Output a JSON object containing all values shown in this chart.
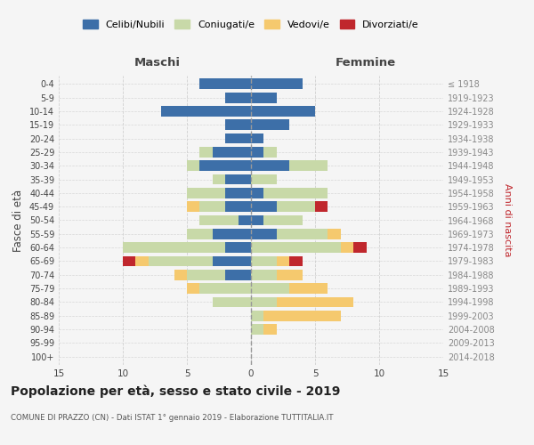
{
  "age_groups": [
    "0-4",
    "5-9",
    "10-14",
    "15-19",
    "20-24",
    "25-29",
    "30-34",
    "35-39",
    "40-44",
    "45-49",
    "50-54",
    "55-59",
    "60-64",
    "65-69",
    "70-74",
    "75-79",
    "80-84",
    "85-89",
    "90-94",
    "95-99",
    "100+"
  ],
  "birth_years": [
    "2014-2018",
    "2009-2013",
    "2004-2008",
    "1999-2003",
    "1994-1998",
    "1989-1993",
    "1984-1988",
    "1979-1983",
    "1974-1978",
    "1969-1973",
    "1964-1968",
    "1959-1963",
    "1954-1958",
    "1949-1953",
    "1944-1948",
    "1939-1943",
    "1934-1938",
    "1929-1933",
    "1924-1928",
    "1919-1923",
    "≤ 1918"
  ],
  "males": {
    "celibi": [
      4,
      2,
      7,
      2,
      2,
      3,
      4,
      2,
      2,
      2,
      1,
      3,
      2,
      3,
      2,
      0,
      0,
      0,
      0,
      0,
      0
    ],
    "coniugati": [
      0,
      0,
      0,
      0,
      0,
      1,
      1,
      1,
      3,
      2,
      3,
      2,
      8,
      5,
      3,
      4,
      3,
      0,
      0,
      0,
      0
    ],
    "vedovi": [
      0,
      0,
      0,
      0,
      0,
      0,
      0,
      0,
      0,
      1,
      0,
      0,
      0,
      1,
      1,
      1,
      0,
      0,
      0,
      0,
      0
    ],
    "divorziati": [
      0,
      0,
      0,
      0,
      0,
      0,
      0,
      0,
      0,
      0,
      0,
      0,
      0,
      1,
      0,
      0,
      0,
      0,
      0,
      0,
      0
    ]
  },
  "females": {
    "nubili": [
      4,
      2,
      5,
      3,
      1,
      1,
      3,
      0,
      1,
      2,
      1,
      2,
      0,
      0,
      0,
      0,
      0,
      0,
      0,
      0,
      0
    ],
    "coniugate": [
      0,
      0,
      0,
      0,
      0,
      1,
      3,
      2,
      5,
      3,
      3,
      4,
      7,
      2,
      2,
      3,
      2,
      1,
      1,
      0,
      0
    ],
    "vedove": [
      0,
      0,
      0,
      0,
      0,
      0,
      0,
      0,
      0,
      0,
      0,
      1,
      1,
      1,
      2,
      3,
      6,
      6,
      1,
      0,
      0
    ],
    "divorziate": [
      0,
      0,
      0,
      0,
      0,
      0,
      0,
      0,
      0,
      1,
      0,
      0,
      1,
      1,
      0,
      0,
      0,
      0,
      0,
      0,
      0
    ]
  },
  "colors": {
    "celibi": "#3d6fa8",
    "coniugati": "#c8d9a8",
    "vedovi": "#f5c96e",
    "divorziati": "#c0272d"
  },
  "title": "Popolazione per età, sesso e stato civile - 2019",
  "subtitle": "COMUNE DI PRAZZO (CN) - Dati ISTAT 1° gennaio 2019 - Elaborazione TUTTITALIA.IT",
  "xlabel_left": "Maschi",
  "xlabel_right": "Femmine",
  "ylabel_left": "Fasce di età",
  "ylabel_right": "Anni di nascita",
  "xlim": 15,
  "legend_labels": [
    "Celibi/Nubili",
    "Coniugati/e",
    "Vedovi/e",
    "Divorziati/e"
  ],
  "bg_color": "#f5f5f5",
  "grid_color": "#cccccc"
}
